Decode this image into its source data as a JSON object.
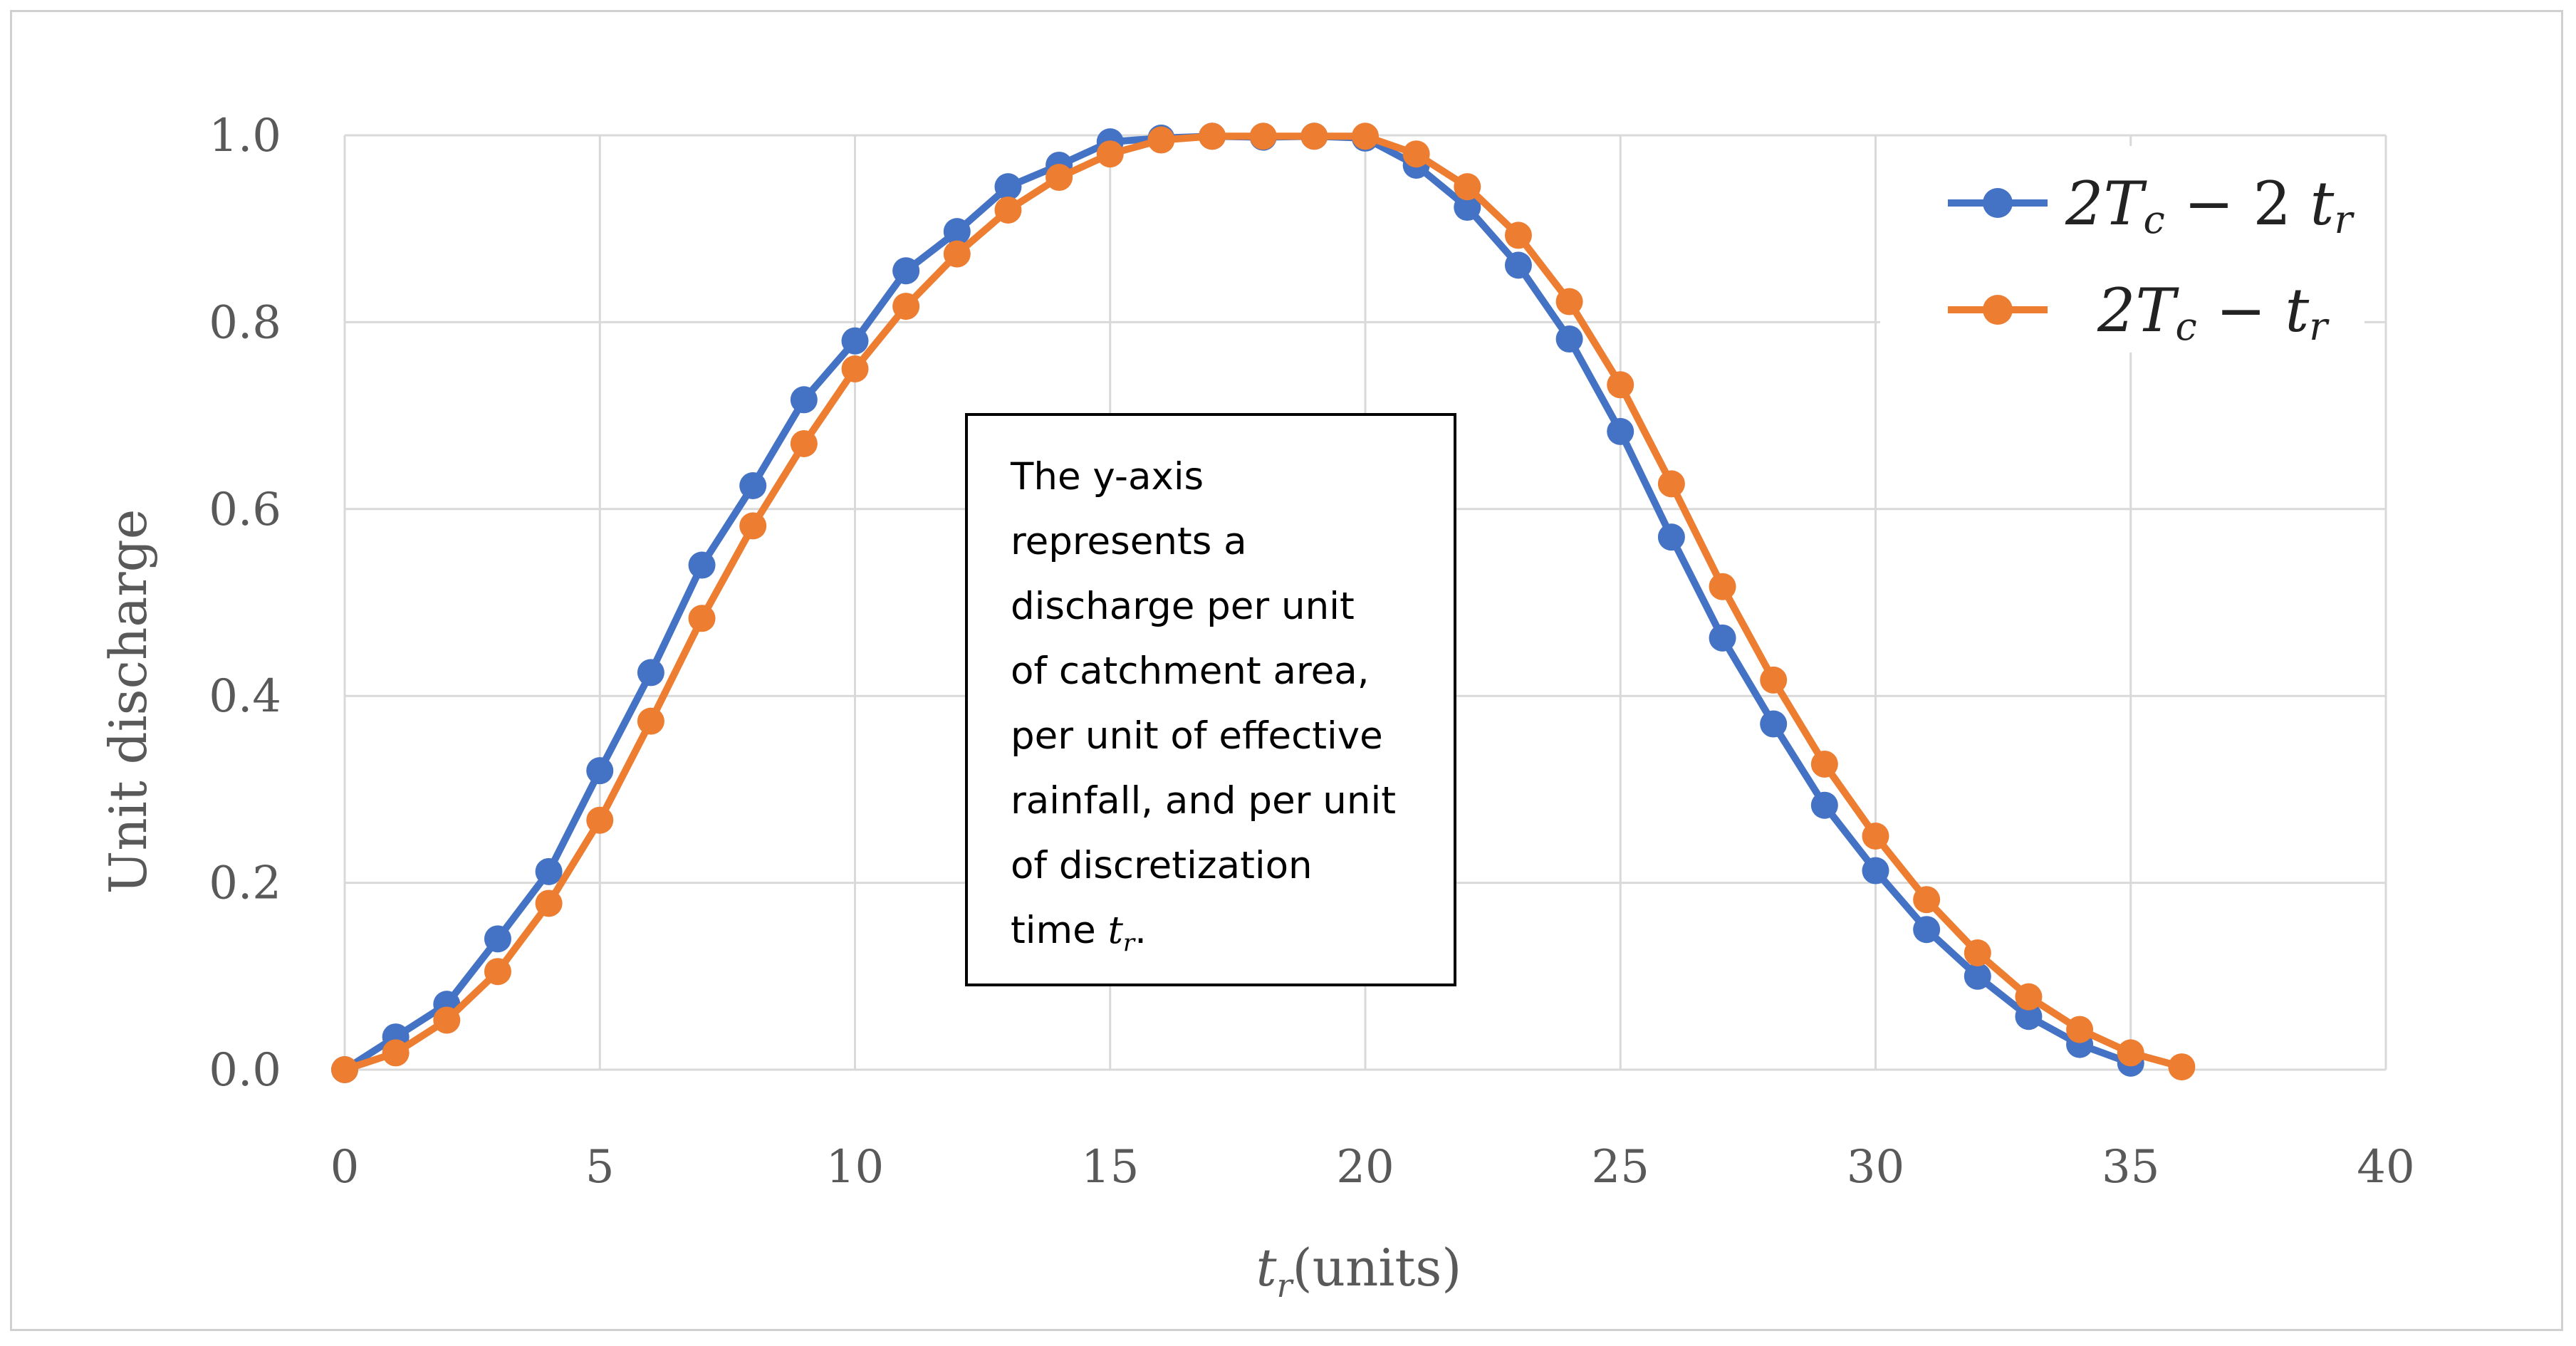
{
  "chart_data": {
    "type": "line",
    "xlabel": "(units)",
    "xlabel_var": "t",
    "xlabel_sub": "r",
    "ylabel": "Unit discharge",
    "xlim": [
      0,
      40
    ],
    "ylim": [
      0,
      1.0
    ],
    "xticks": [
      "0",
      "5",
      "10",
      "15",
      "20",
      "25",
      "30",
      "35",
      "40"
    ],
    "yticks": [
      "0.0",
      "0.2",
      "0.4",
      "0.6",
      "0.8",
      "1.0"
    ],
    "grid": true,
    "legend_position": "top-right",
    "series": [
      {
        "name": "2Tc − 2 tr",
        "color": "#4472C4",
        "x": [
          0,
          1,
          2,
          3,
          4,
          5,
          6,
          7,
          8,
          9,
          10,
          11,
          12,
          13,
          14,
          15,
          16,
          17,
          18,
          19,
          20,
          21,
          22,
          23,
          24,
          25,
          26,
          27,
          28,
          29,
          30,
          31,
          32,
          33,
          34,
          35
        ],
        "y": [
          0.0,
          0.035,
          0.07,
          0.14,
          0.212,
          0.32,
          0.425,
          0.54,
          0.625,
          0.717,
          0.78,
          0.855,
          0.897,
          0.945,
          0.968,
          0.993,
          0.997,
          0.999,
          0.998,
          0.999,
          0.997,
          0.968,
          0.923,
          0.861,
          0.782,
          0.683,
          0.57,
          0.462,
          0.37,
          0.283,
          0.213,
          0.15,
          0.1,
          0.057,
          0.027,
          0.007
        ]
      },
      {
        "name": "2Tc − tr",
        "color": "#ED7D31",
        "x": [
          0,
          1,
          2,
          3,
          4,
          5,
          6,
          7,
          8,
          9,
          10,
          11,
          12,
          13,
          14,
          15,
          16,
          17,
          18,
          19,
          20,
          21,
          22,
          23,
          24,
          25,
          26,
          27,
          28,
          29,
          30,
          31,
          32,
          33,
          34,
          35,
          36
        ],
        "y": [
          0.0,
          0.018,
          0.053,
          0.105,
          0.178,
          0.267,
          0.373,
          0.483,
          0.582,
          0.67,
          0.75,
          0.817,
          0.873,
          0.92,
          0.955,
          0.98,
          0.995,
          0.999,
          0.999,
          0.999,
          0.999,
          0.98,
          0.945,
          0.893,
          0.822,
          0.733,
          0.627,
          0.517,
          0.417,
          0.327,
          0.25,
          0.182,
          0.125,
          0.078,
          0.043,
          0.018,
          0.003
        ]
      }
    ],
    "legend": [
      {
        "main": "2T",
        "sub": "c",
        "rest": " − 2 t",
        "sub2": "r"
      },
      {
        "main": "2T",
        "sub": "c",
        "rest": " − t",
        "sub2": "r"
      }
    ]
  },
  "note": {
    "lines": [
      "The y-axis",
      "represents a",
      "discharge per unit",
      "of catchment area,",
      "per unit of effective",
      "rainfall, and per unit",
      "of discretization"
    ],
    "last_prefix": "time ",
    "last_var": "t",
    "last_sub": "r",
    "last_suffix": "."
  }
}
